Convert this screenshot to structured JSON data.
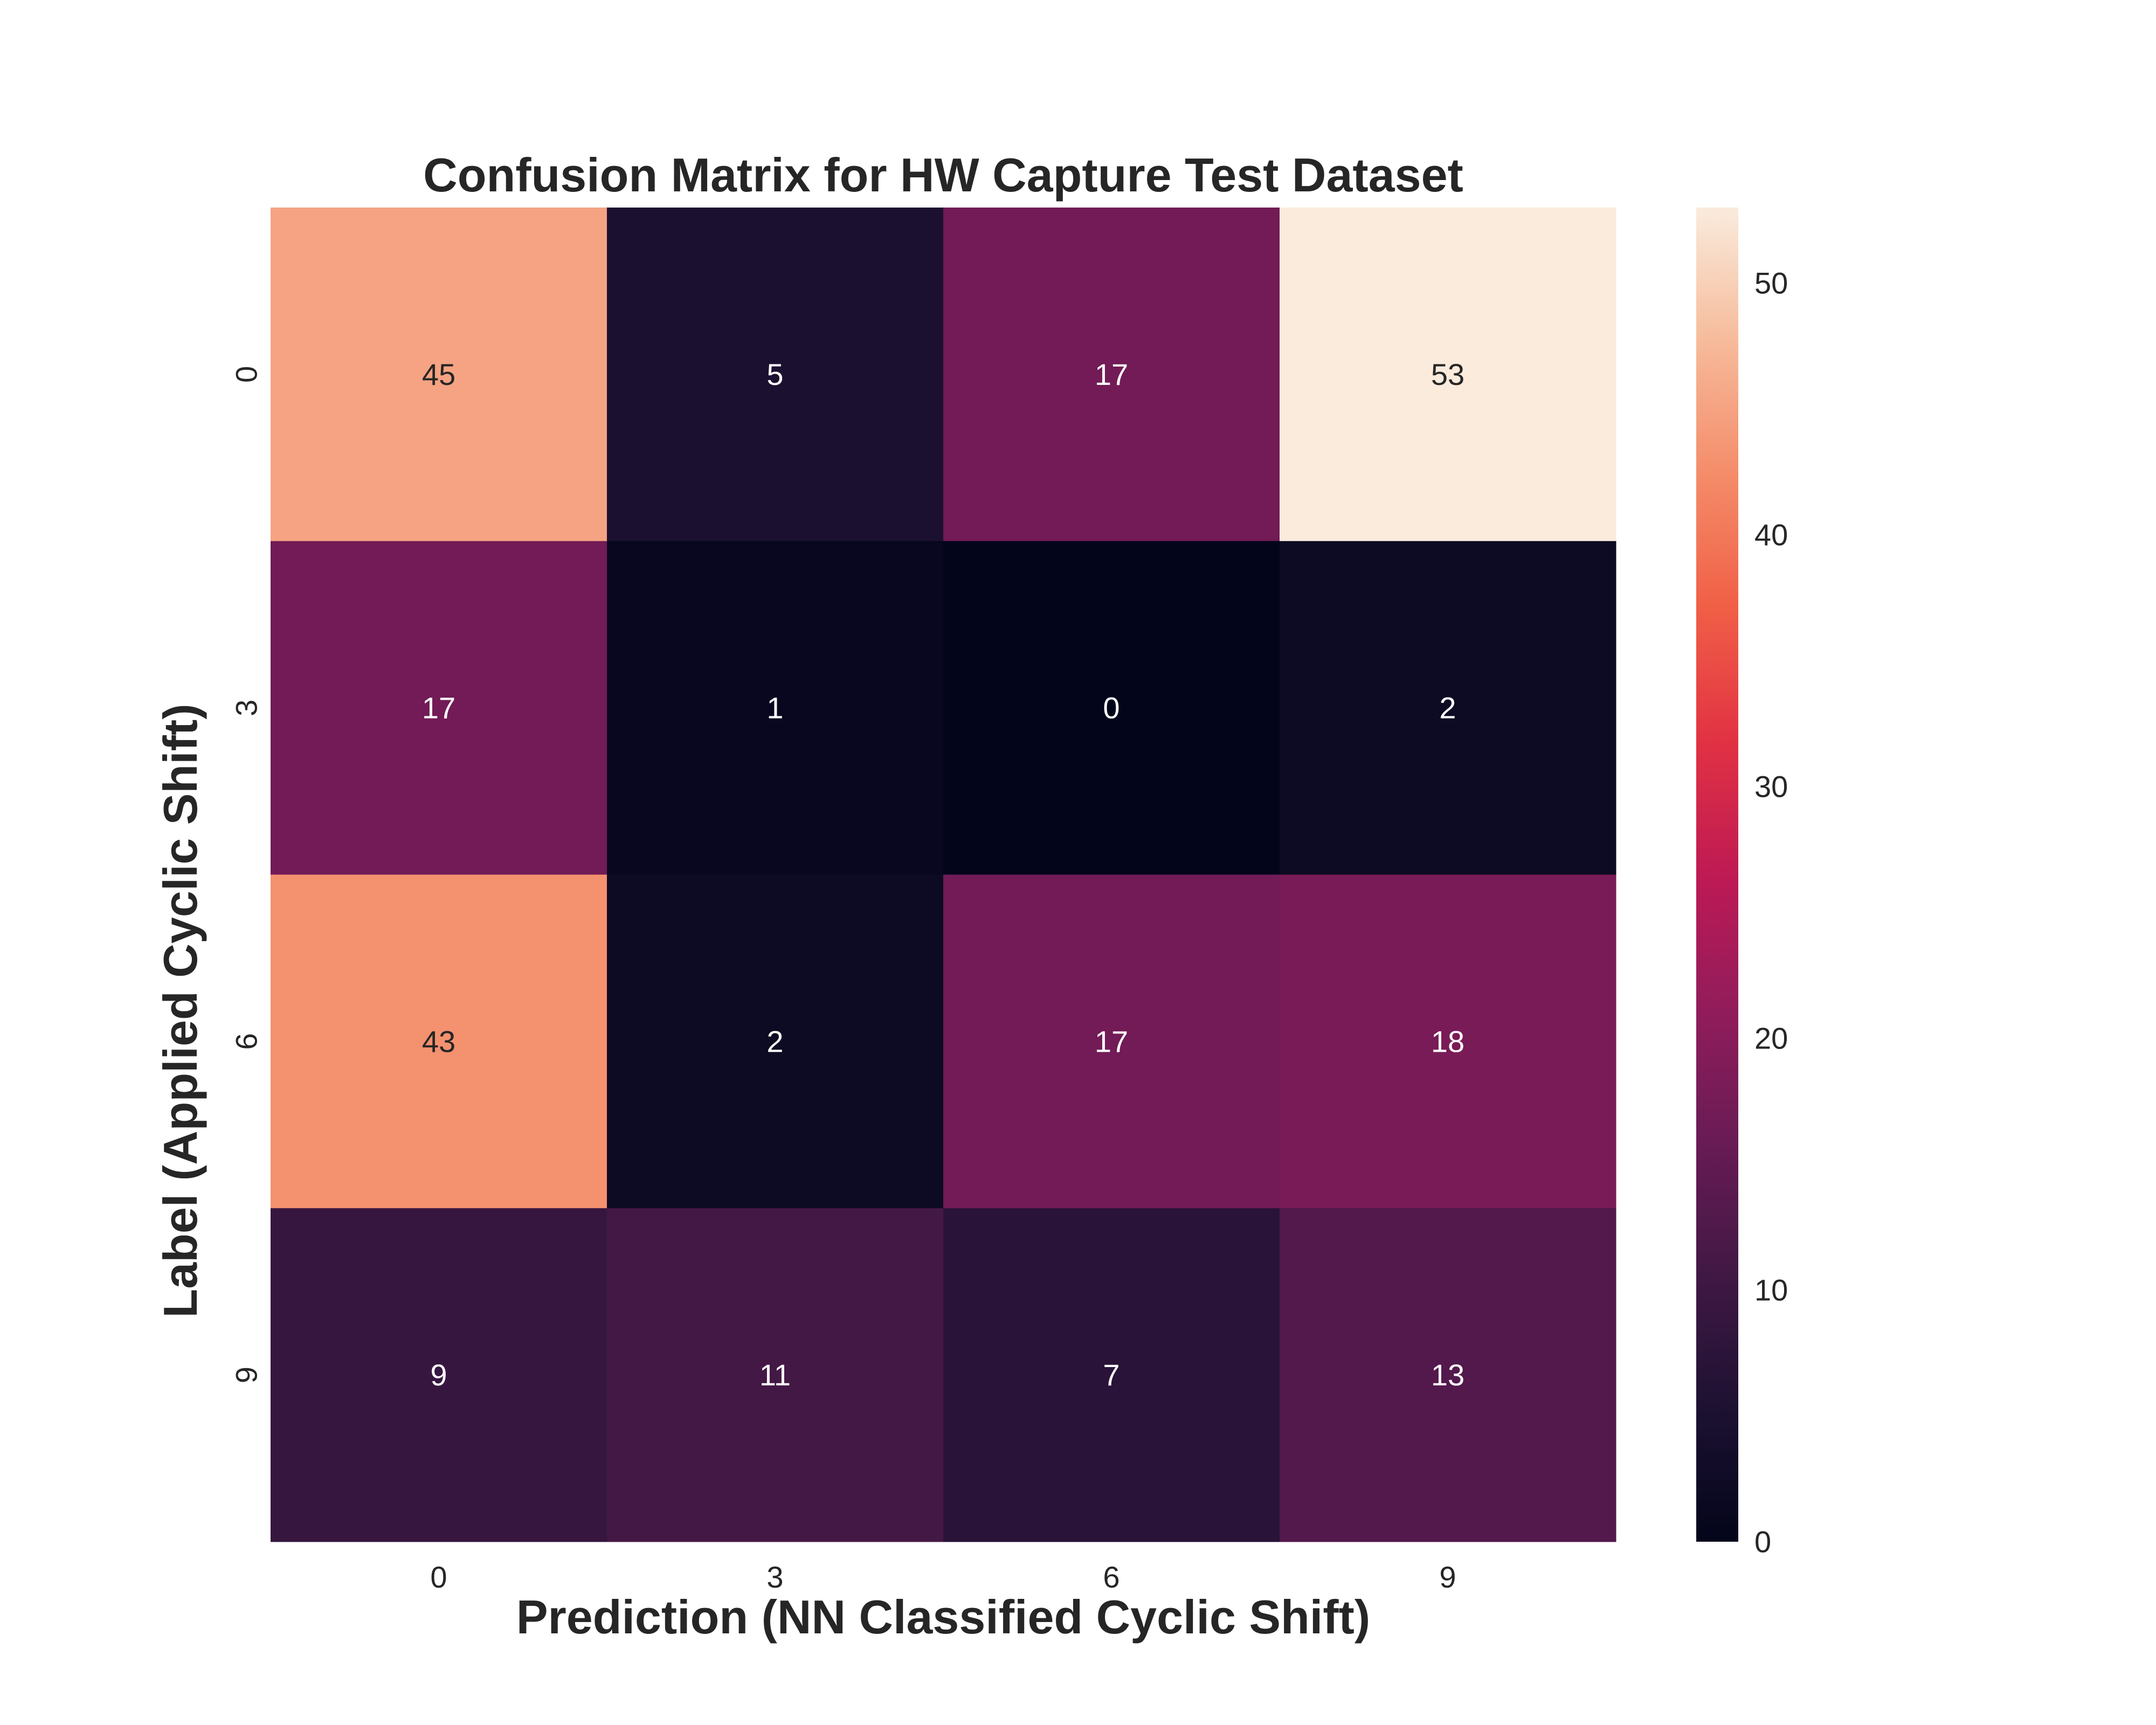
{
  "chart_data": {
    "type": "heatmap",
    "title": "Confusion Matrix for HW Capture Test Dataset",
    "xlabel": "Prediction (NN Classified Cyclic Shift)",
    "ylabel": "Label (Applied Cyclic Shift)",
    "x_categories": [
      "0",
      "3",
      "6",
      "9"
    ],
    "y_categories": [
      "0",
      "3",
      "6",
      "9"
    ],
    "values": [
      [
        45,
        5,
        17,
        53
      ],
      [
        17,
        1,
        0,
        2
      ],
      [
        43,
        2,
        17,
        18
      ],
      [
        9,
        11,
        7,
        13
      ]
    ],
    "colorscale": "rocket",
    "colorbar": {
      "range": [
        0,
        53
      ],
      "ticks": [
        0,
        10,
        20,
        30,
        40,
        50
      ]
    },
    "grid": false
  }
}
